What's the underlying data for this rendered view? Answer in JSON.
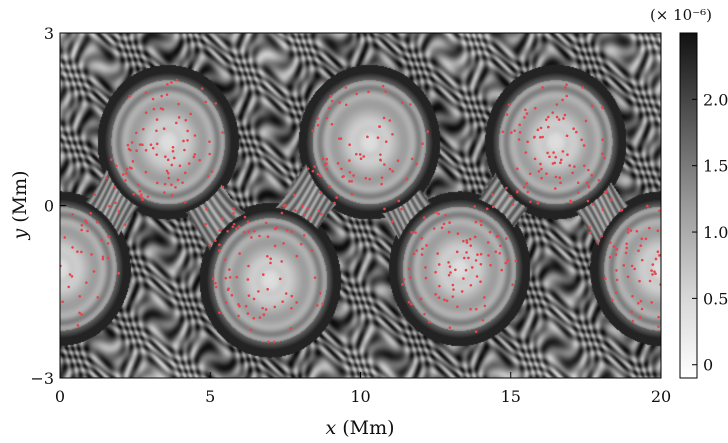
{
  "chart_data": {
    "type": "heatmap",
    "title": "",
    "xlabel": "x (Mm)",
    "ylabel": "y (Mm)",
    "xlim": [
      0,
      20
    ],
    "ylim": [
      -3,
      3
    ],
    "x_ticks": [
      {
        "value": 0,
        "label": "0"
      },
      {
        "value": 5,
        "label": "5"
      },
      {
        "value": 10,
        "label": "10"
      },
      {
        "value": 15,
        "label": "15"
      },
      {
        "value": 20,
        "label": "20"
      }
    ],
    "y_ticks": [
      {
        "value": 3,
        "label": "3"
      },
      {
        "value": 0,
        "label": "0"
      },
      {
        "value": -3,
        "label": "−3"
      }
    ],
    "colormap": "gray_r",
    "colorbar": {
      "range": [
        -0.1,
        2.5
      ],
      "ticks": [
        {
          "value": 0,
          "label": "0"
        },
        {
          "value": 0.5,
          "label": "0.5"
        },
        {
          "value": 1.0,
          "label": "1.0"
        },
        {
          "value": 1.5,
          "label": "1.5"
        },
        {
          "value": 2.0,
          "label": "2.0"
        }
      ],
      "scale_label": "(× 10⁻⁶)"
    },
    "vortices": [
      {
        "x": 3.6,
        "y": 1.1,
        "rotation": "positive"
      },
      {
        "x": 10.3,
        "y": 1.1,
        "rotation": "positive"
      },
      {
        "x": 16.5,
        "y": 1.1,
        "rotation": "positive"
      },
      {
        "x": 0.0,
        "y": -1.1,
        "rotation": "negative"
      },
      {
        "x": 7.0,
        "y": -1.3,
        "rotation": "negative"
      },
      {
        "x": 13.3,
        "y": -1.1,
        "rotation": "negative"
      },
      {
        "x": 20.0,
        "y": -1.1,
        "rotation": "negative"
      }
    ],
    "tracer_points": {
      "color": "#e8434a",
      "description_count": 600
    },
    "grid": false
  }
}
